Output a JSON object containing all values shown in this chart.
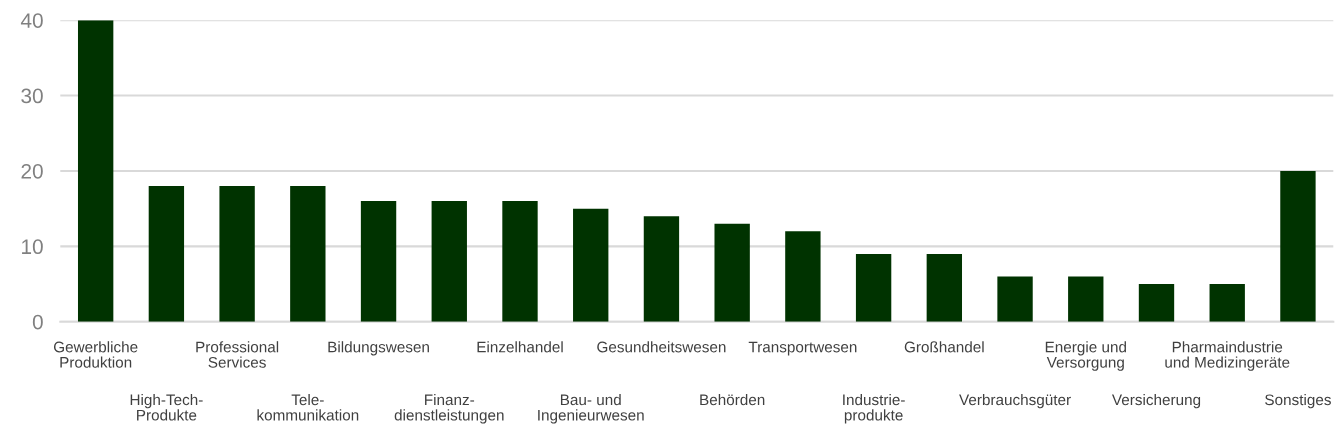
{
  "chart_data": {
    "type": "bar",
    "categories": [
      "Gewerbliche\nProduktion",
      "High-Tech-\nProdukte",
      "Professional\nServices",
      "Tele-\nkommunikation",
      "Bildungswesen",
      "Finanz-\ndienstleistungen",
      "Einzelhandel",
      "Bau- und\nIngenieurwesen",
      "Gesundheitswesen",
      "Behörden",
      "Transportwesen",
      "Industrie-\nprodukte",
      "Großhandel",
      "Verbrauchsgüter",
      "Energie und\nVersorgung",
      "Versicherung",
      "Pharmaindustrie\nund Medizingeräte",
      "Sonstiges"
    ],
    "values": [
      40,
      18,
      18,
      18,
      16,
      16,
      16,
      15,
      14,
      13,
      12,
      9,
      9,
      6,
      6,
      5,
      5,
      20
    ],
    "color": "#003300",
    "ylim": [
      0,
      40
    ],
    "yticks": [
      0,
      10,
      20,
      30,
      40
    ],
    "grid": "y",
    "legend": false
  }
}
